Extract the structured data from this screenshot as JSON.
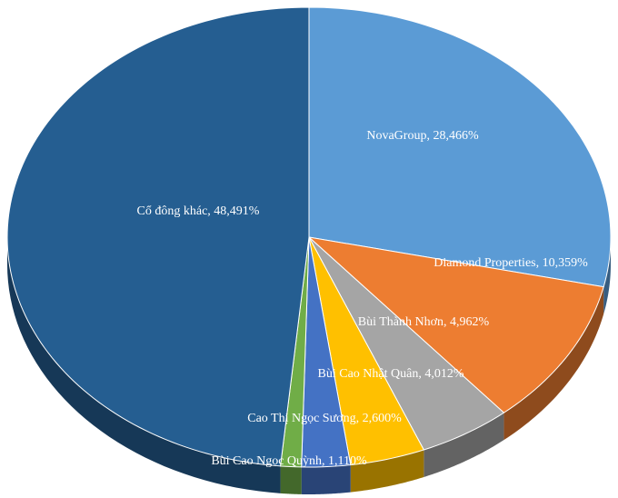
{
  "chart_data": {
    "type": "pie",
    "values": [
      28.466,
      10.359,
      4.962,
      4.012,
      2.6,
      1.11,
      48.491
    ],
    "value_labels": [
      "NovaGroup, 28,466%",
      "Diamond Properties, 10,359%",
      "Bùi Thành Nhơn, 4,962%",
      "Bùi Cao Nhật Quân, 4,012%",
      "Cao Thị Ngọc Sương, 2,600%",
      "Bùi Cao Ngọc Quỳnh, 1,110%",
      "Cổ đông khác, 48,491%"
    ],
    "colors": [
      "#5b9bd5",
      "#ed7d31",
      "#a5a5a5",
      "#ffc000",
      "#4472c4",
      "#70ad47",
      "#255e91"
    ]
  }
}
